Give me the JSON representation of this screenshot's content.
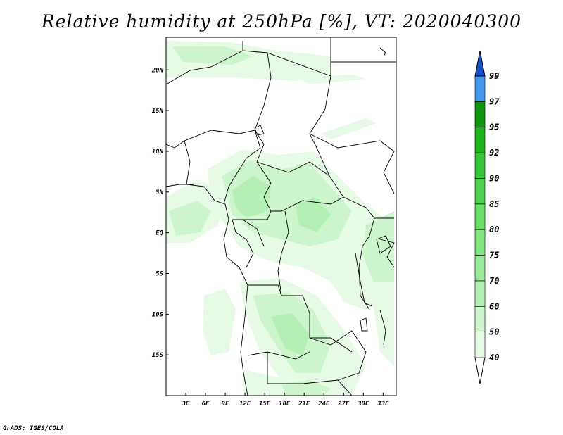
{
  "title": "Relative humidity at 250hPa [%], VT: 2020040300",
  "credit": "GrADS: IGES/COLA",
  "map": {
    "lon_range": [
      0,
      35
    ],
    "lat_range": [
      -20,
      24
    ],
    "lon_ticks": [
      {
        "lon": 3,
        "label": "3E"
      },
      {
        "lon": 6,
        "label": "6E"
      },
      {
        "lon": 9,
        "label": "9E"
      },
      {
        "lon": 12,
        "label": "12E"
      },
      {
        "lon": 15,
        "label": "15E"
      },
      {
        "lon": 18,
        "label": "18E"
      },
      {
        "lon": 21,
        "label": "21E"
      },
      {
        "lon": 24,
        "label": "24E"
      },
      {
        "lon": 27,
        "label": "27E"
      },
      {
        "lon": 30,
        "label": "30E"
      },
      {
        "lon": 33,
        "label": "33E"
      }
    ],
    "lat_ticks": [
      {
        "lat": 20,
        "label": "20N"
      },
      {
        "lat": 15,
        "label": "15N"
      },
      {
        "lat": 10,
        "label": "10N"
      },
      {
        "lat": 5,
        "label": "5N"
      },
      {
        "lat": 0,
        "label": "EQ"
      },
      {
        "lat": -5,
        "label": "5S"
      },
      {
        "lat": -10,
        "label": "10S"
      },
      {
        "lat": -15,
        "label": "15S"
      }
    ]
  },
  "colorbar": {
    "levels": [
      "40",
      "50",
      "60",
      "70",
      "75",
      "80",
      "85",
      "90",
      "92",
      "95",
      "97",
      "99"
    ],
    "colors": [
      "#e6fae6",
      "#cdf5cd",
      "#b4f0b4",
      "#9bea9b",
      "#82e582",
      "#69de69",
      "#50d250",
      "#37c337",
      "#1eb41e",
      "#0f960f",
      "#4696f0",
      "#1e6ee6",
      "#1450c8"
    ]
  }
}
